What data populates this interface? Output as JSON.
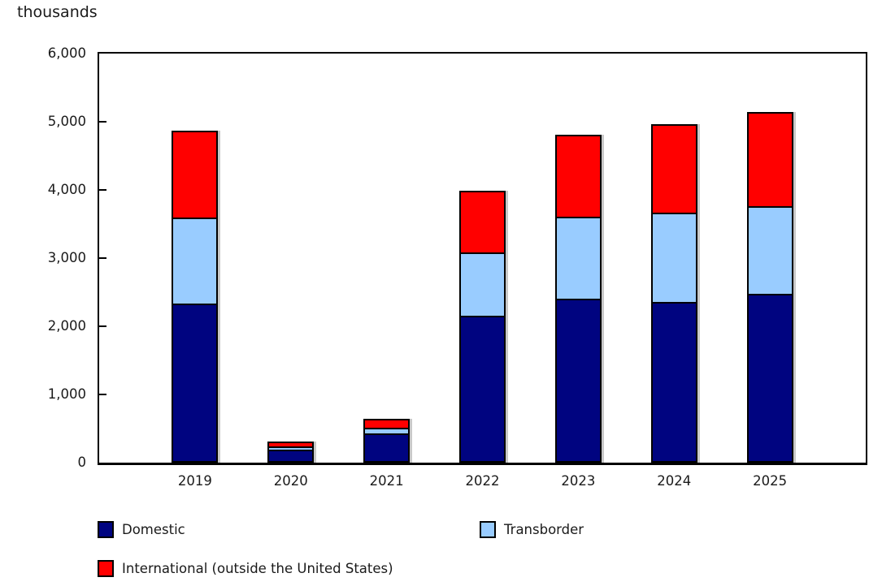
{
  "page": {
    "background": "#ffffff"
  },
  "chart_data": {
    "type": "bar",
    "stacked": true,
    "title": "thousands",
    "ylabel": "thousands",
    "xlabel": "",
    "categories": [
      "2019",
      "2020",
      "2021",
      "2022",
      "2023",
      "2024",
      "2025"
    ],
    "series": [
      {
        "name": "Domestic",
        "color": "#000480",
        "values": [
          2330,
          215,
          450,
          2155,
          2410,
          2350,
          2480
        ]
      },
      {
        "name": "Transborder",
        "color": "#99CCFF",
        "values": [
          1260,
          25,
          70,
          935,
          1195,
          1315,
          1280
        ]
      },
      {
        "name": "International (outside the United States)",
        "color": "#FF0000",
        "values": [
          1275,
          70,
          125,
          900,
          1200,
          1305,
          1380
        ]
      }
    ],
    "totals": [
      4865,
      310,
      645,
      3990,
      4805,
      4970,
      5140
    ],
    "ylim": [
      0,
      6000
    ],
    "yticks": [
      {
        "value": 0,
        "label": "0"
      },
      {
        "value": 1000,
        "label": "1,000"
      },
      {
        "value": 2000,
        "label": "2,000"
      },
      {
        "value": 3000,
        "label": "3,000"
      },
      {
        "value": 4000,
        "label": "4,000"
      },
      {
        "value": 5000,
        "label": "5,000"
      },
      {
        "value": 6000,
        "label": "6,000"
      }
    ],
    "grid": false,
    "legend_position": "bottom",
    "tick_style": "inward"
  },
  "colors": {
    "axis": "#000000",
    "bar_border": "#000000",
    "text": "#1a1a1a",
    "shadow": "#c8c8c8"
  }
}
